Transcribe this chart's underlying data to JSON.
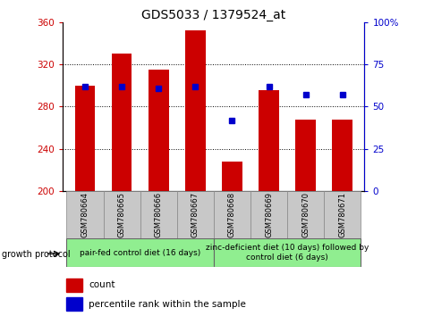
{
  "title": "GDS5033 / 1379524_at",
  "samples": [
    "GSM780664",
    "GSM780665",
    "GSM780666",
    "GSM780667",
    "GSM780668",
    "GSM780669",
    "GSM780670",
    "GSM780671"
  ],
  "bar_values": [
    300,
    330,
    315,
    352,
    228,
    296,
    268,
    268
  ],
  "percentile_values": [
    62,
    62,
    61,
    62,
    42,
    62,
    57,
    57
  ],
  "ymin": 200,
  "ymax": 360,
  "yticks": [
    200,
    240,
    280,
    320,
    360
  ],
  "right_yticks": [
    0,
    25,
    50,
    75,
    100
  ],
  "bar_color": "#cc0000",
  "percentile_color": "#0000cc",
  "bar_width": 0.55,
  "group_labels": [
    "pair-fed control diet (16 days)",
    "zinc-deficient diet (10 days) followed by\ncontrol diet (6 days)"
  ],
  "group_protocol_label": "growth protocol",
  "tick_label_bg": "#c8c8c8",
  "green_bg": "#90ee90",
  "grid_color": "#000000",
  "title_fontsize": 10,
  "tick_fontsize": 7.5,
  "sample_fontsize": 6,
  "group_fontsize": 6.5,
  "legend_fontsize": 7.5
}
